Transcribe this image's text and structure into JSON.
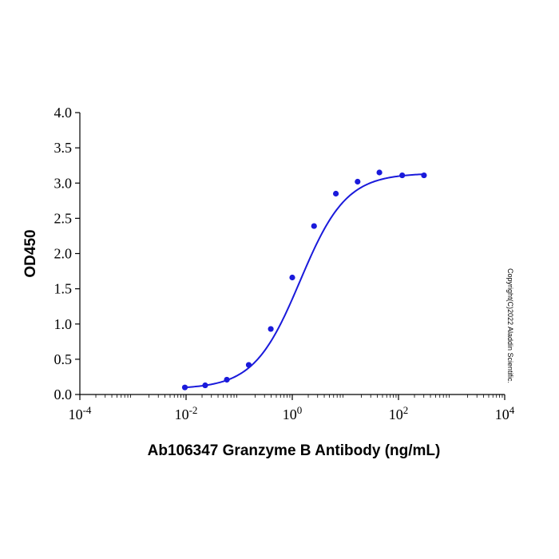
{
  "chart_data": {
    "type": "scatter",
    "title": "",
    "xlabel": "Ab106347 Granzyme B Antibody (ng/mL)",
    "ylabel": "OD450",
    "xscale": "log",
    "xlim": [
      0.0001,
      10000
    ],
    "ylim": [
      0,
      4
    ],
    "x_ticks": [
      {
        "base": "10",
        "exp": "-4"
      },
      {
        "base": "10",
        "exp": "-2"
      },
      {
        "base": "10",
        "exp": "0"
      },
      {
        "base": "10",
        "exp": "2"
      },
      {
        "base": "10",
        "exp": "4"
      }
    ],
    "y_ticks": [
      "0.0",
      "0.5",
      "1.0",
      "1.5",
      "2.0",
      "2.5",
      "3.0",
      "3.5",
      "4.0"
    ],
    "grid": false,
    "legend": "none",
    "series": [
      {
        "color": "#1a1adb",
        "x": [
          0.0095,
          0.0229,
          0.0586,
          0.1514,
          0.394,
          1.0,
          2.57,
          6.62,
          17.0,
          43.7,
          117.5,
          302.0
        ],
        "y": [
          0.1,
          0.13,
          0.21,
          0.42,
          0.93,
          1.66,
          2.39,
          2.85,
          3.02,
          3.15,
          3.11,
          3.11
        ]
      }
    ],
    "fit": {
      "type": "4PL",
      "color": "#1a1adb",
      "bottom": 0.08,
      "top": 3.14,
      "ec50": 1.4,
      "hill": 1.0,
      "x_range": [
        0.0095,
        302.0
      ]
    }
  },
  "copyright": "Copyright(C)2022 Aladdin Scientific."
}
